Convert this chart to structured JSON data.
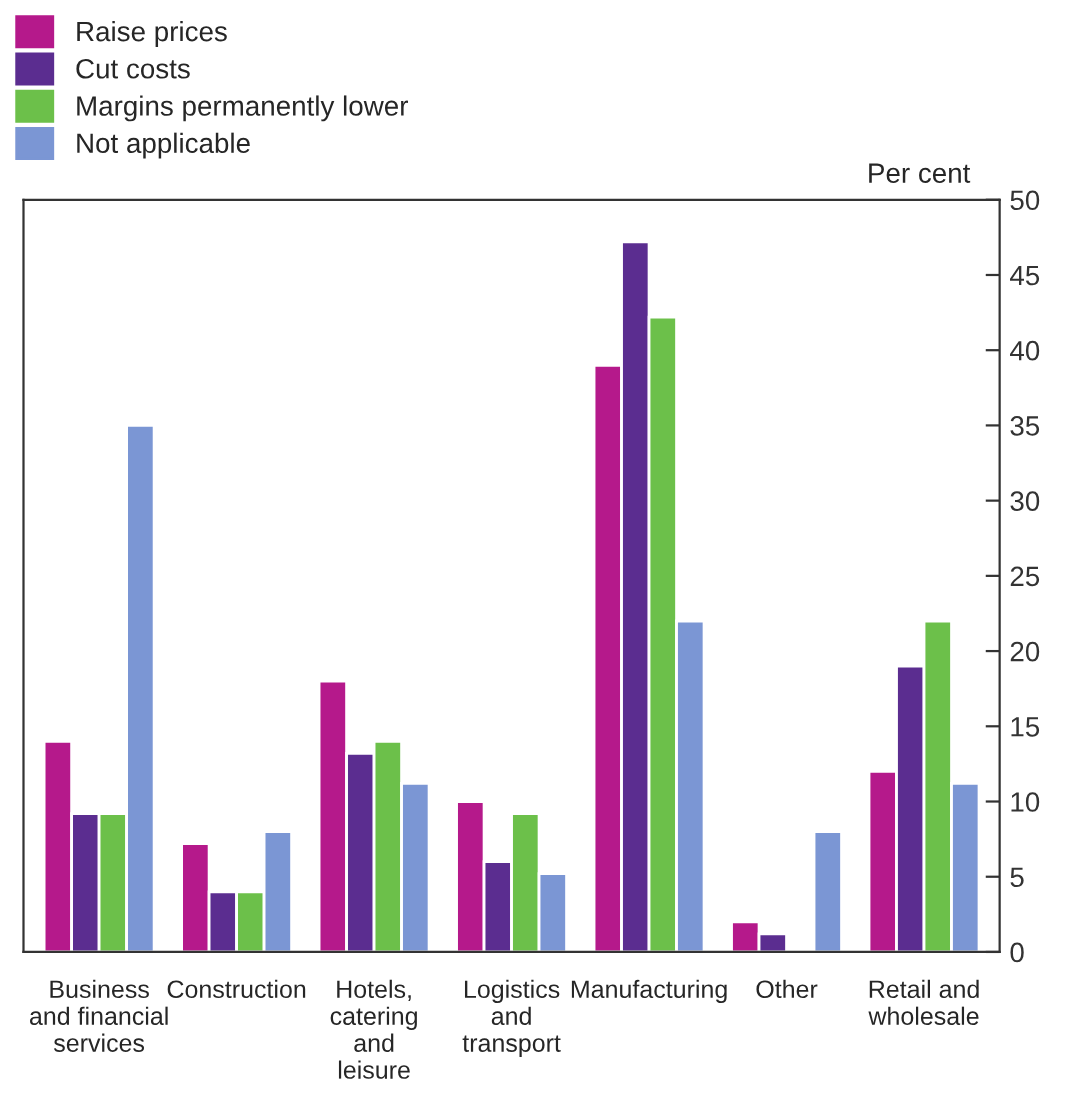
{
  "chart_data": {
    "type": "bar",
    "ylabel": "Per cent",
    "categories": [
      "Business\nand financial\nservices",
      "Construction",
      "Hotels,\ncatering\nand\nleisure",
      "Logistics\nand\ntransport",
      "Manufacturing",
      "Other",
      "Retail and\nwholesale"
    ],
    "series": [
      {
        "name": "Raise prices",
        "color": "#b5198b",
        "values": [
          14,
          7.2,
          18,
          10,
          39,
          2,
          12
        ]
      },
      {
        "name": "Cut costs",
        "color": "#5b2d90",
        "values": [
          9.2,
          4,
          13.2,
          6,
          47.2,
          1.2,
          19
        ]
      },
      {
        "name": "Margins permanently lower",
        "color": "#6cc04a",
        "values": [
          9.2,
          4,
          14,
          9.2,
          42.2,
          null,
          22
        ]
      },
      {
        "name": "Not applicable",
        "color": "#7b96d4",
        "values": [
          35,
          8,
          11.2,
          5.2,
          22,
          8,
          11.2
        ]
      }
    ],
    "ylim": [
      0,
      50
    ],
    "yticks": [
      0,
      5,
      10,
      15,
      20,
      25,
      30,
      35,
      40,
      45,
      50
    ],
    "grid": false,
    "legend": "top left"
  }
}
